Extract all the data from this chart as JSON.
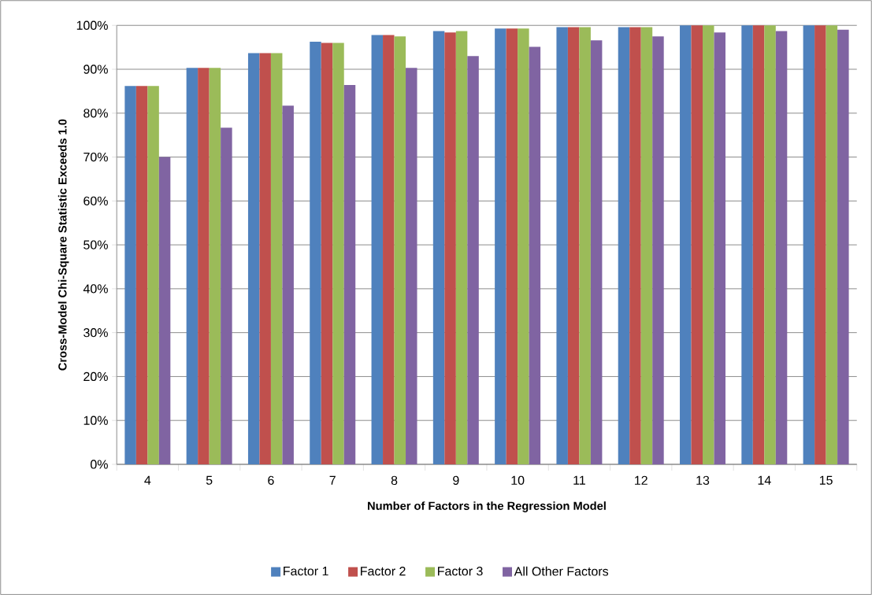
{
  "chart_data": {
    "type": "bar",
    "xlabel": "Number of Factors in the Regression Model",
    "ylabel": "Cross-Model Chi-Square Statistic Exceeds 1.0",
    "categories": [
      "4",
      "5",
      "6",
      "7",
      "8",
      "9",
      "10",
      "11",
      "12",
      "13",
      "14",
      "15"
    ],
    "series": [
      {
        "name": "Factor 1",
        "color": "#4f81bd",
        "values": [
          86.2,
          90.3,
          93.7,
          96.3,
          97.8,
          98.7,
          99.3,
          99.6,
          99.6,
          100,
          100,
          100
        ]
      },
      {
        "name": "Factor 2",
        "color": "#c0504d",
        "values": [
          86.2,
          90.3,
          93.7,
          96.0,
          97.8,
          98.4,
          99.3,
          99.6,
          99.6,
          100,
          100,
          100
        ]
      },
      {
        "name": "Factor 3",
        "color": "#9bbb59",
        "values": [
          86.2,
          90.3,
          93.7,
          96.0,
          97.5,
          98.7,
          99.3,
          99.6,
          99.6,
          100,
          100,
          100
        ]
      },
      {
        "name": "All Other Factors",
        "color": "#8064a2",
        "values": [
          70.0,
          76.7,
          81.7,
          86.4,
          90.3,
          93.0,
          95.1,
          96.6,
          97.5,
          98.4,
          98.7,
          99.0
        ]
      }
    ],
    "ylim": [
      0,
      100
    ],
    "yticks": [
      {
        "value": 0,
        "label": "0%"
      },
      {
        "value": 10,
        "label": "10%"
      },
      {
        "value": 20,
        "label": "20%"
      },
      {
        "value": 30,
        "label": "30%"
      },
      {
        "value": 40,
        "label": "40%"
      },
      {
        "value": 50,
        "label": "50%"
      },
      {
        "value": 60,
        "label": "60%"
      },
      {
        "value": 70,
        "label": "70%"
      },
      {
        "value": 80,
        "label": "80%"
      },
      {
        "value": 90,
        "label": "90%"
      },
      {
        "value": 100,
        "label": "100%"
      }
    ],
    "grid": "y",
    "legend": "bottom"
  }
}
